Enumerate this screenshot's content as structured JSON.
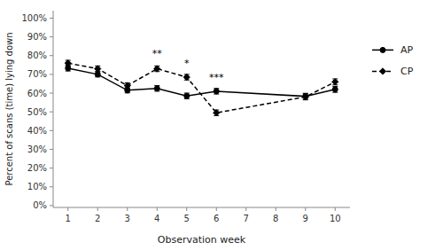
{
  "chart_data": {
    "type": "line",
    "x": [
      1,
      2,
      3,
      4,
      5,
      6,
      9,
      10
    ],
    "xlabel": "Observation week",
    "ylabel": "Percent of scans (time) lying down",
    "series": [
      {
        "name": "AP",
        "color": "#000000",
        "marker": "circle",
        "line_style": "solid",
        "values": [
          0.733,
          0.7,
          0.615,
          0.625,
          0.585,
          0.61,
          0.583,
          0.62
        ],
        "errors": [
          0.015,
          0.014,
          0.014,
          0.015,
          0.015,
          0.015,
          0.016,
          0.016
        ]
      },
      {
        "name": "CP",
        "color": "#000000",
        "marker": "diamond",
        "line_style": "dashed",
        "values": [
          0.76,
          0.73,
          0.64,
          0.73,
          0.685,
          0.495,
          0.58,
          0.66
        ],
        "errors": [
          0.015,
          0.015,
          0.015,
          0.015,
          0.015,
          0.015,
          0.016,
          0.016
        ]
      }
    ],
    "annotations": [
      {
        "x": 4,
        "y": 0.79,
        "text": "**"
      },
      {
        "x": 5,
        "y": 0.735,
        "text": "*"
      },
      {
        "x": 6,
        "y": 0.66,
        "text": "***"
      }
    ],
    "xlim": [
      0.5,
      10.5
    ],
    "ylim": [
      -0.01,
      1.04
    ],
    "xticks": [
      1,
      2,
      3,
      4,
      5,
      6,
      7,
      8,
      9,
      10
    ],
    "yticks": [
      {
        "value": 0.0,
        "label": "0%"
      },
      {
        "value": 0.1,
        "label": "10%"
      },
      {
        "value": 0.2,
        "label": "20%"
      },
      {
        "value": 0.3,
        "label": "30%"
      },
      {
        "value": 0.4,
        "label": "40%"
      },
      {
        "value": 0.5,
        "label": "50%"
      },
      {
        "value": 0.6,
        "label": "60%"
      },
      {
        "value": 0.7,
        "label": "70%"
      },
      {
        "value": 0.8,
        "label": "80%"
      },
      {
        "value": 0.9,
        "label": "90%"
      },
      {
        "value": 1.0,
        "label": "100%"
      }
    ],
    "grid": false,
    "legend": "right"
  }
}
